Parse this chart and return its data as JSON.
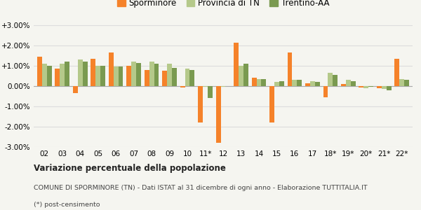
{
  "categories": [
    "02",
    "03",
    "04",
    "05",
    "06",
    "07",
    "08",
    "09",
    "10",
    "11*",
    "12",
    "13",
    "14",
    "15",
    "16",
    "17",
    "18*",
    "19*",
    "20*",
    "21*",
    "22*"
  ],
  "sporminore": [
    1.45,
    0.85,
    -0.35,
    1.35,
    1.65,
    1.0,
    0.8,
    0.75,
    -0.08,
    -1.8,
    -2.8,
    2.15,
    0.4,
    -1.8,
    1.65,
    0.15,
    -0.55,
    0.12,
    -0.08,
    -0.1,
    1.35
  ],
  "provincia": [
    1.1,
    1.1,
    1.3,
    1.0,
    0.95,
    1.2,
    1.2,
    1.1,
    0.85,
    -0.05,
    -0.05,
    1.0,
    0.35,
    0.2,
    0.3,
    0.25,
    0.65,
    0.3,
    -0.1,
    -0.15,
    0.35
  ],
  "trentino": [
    1.0,
    1.2,
    1.2,
    1.0,
    0.95,
    1.15,
    1.1,
    0.9,
    0.8,
    -0.6,
    0.0,
    1.1,
    0.35,
    0.25,
    0.3,
    0.22,
    0.55,
    0.25,
    -0.05,
    -0.2,
    0.3
  ],
  "color_sporminore": "#f5822a",
  "color_provincia": "#b5c98a",
  "color_trentino": "#7a9a50",
  "title_bold": "Variazione percentuale della popolazione",
  "subtitle": "COMUNE DI SPORMINORE (TN) - Dati ISTAT al 31 dicembre di ogni anno - Elaborazione TUTTITALIA.IT",
  "footnote": "(*) post-censimento",
  "legend_labels": [
    "Sporminore",
    "Provincia di TN",
    "Trentino-AA"
  ],
  "ylim": [
    -3.0,
    3.0
  ],
  "yticks": [
    -3.0,
    -2.0,
    -1.0,
    0.0,
    1.0,
    2.0,
    3.0
  ],
  "background_color": "#f5f5f0",
  "grid_color": "#dddddd"
}
